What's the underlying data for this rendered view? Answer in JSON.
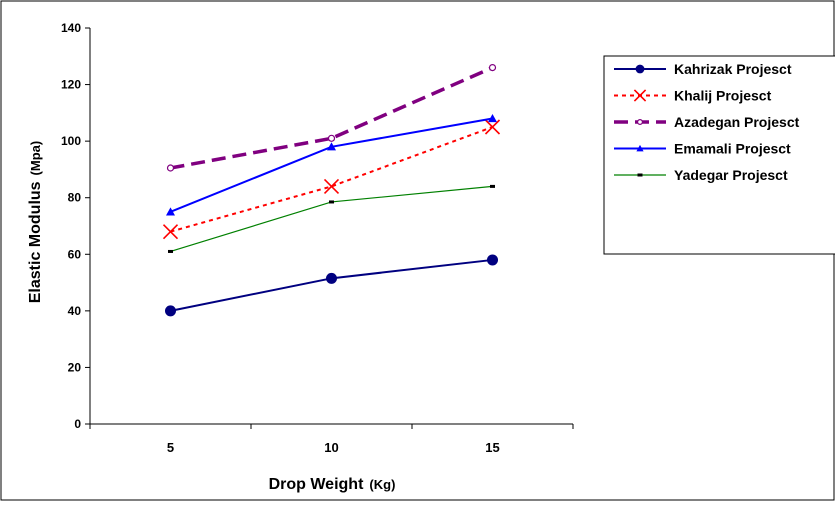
{
  "chart_data": {
    "type": "line",
    "xlabel": "Drop Weight",
    "xlabel_unit": "(Kg)",
    "ylabel": "Elastic Modulus",
    "ylabel_unit": "(Mpa)",
    "categories": [
      "5",
      "10",
      "15"
    ],
    "ylim": [
      0,
      140
    ],
    "yticks": [
      "0",
      "20",
      "40",
      "60",
      "80",
      "100",
      "120",
      "140"
    ],
    "grid": false,
    "legend_position": "right",
    "series": [
      {
        "name": "Kahrizak Projesct",
        "values": [
          40,
          51.5,
          58
        ],
        "color": "#000080",
        "marker": "circle",
        "dash": "solid"
      },
      {
        "name": "Khalij Projesct",
        "values": [
          68,
          84,
          105
        ],
        "color": "#ff0000",
        "marker": "x",
        "dash": "dotted"
      },
      {
        "name": "Azadegan Projesct",
        "values": [
          90.5,
          101,
          126
        ],
        "color": "#800080",
        "marker": "open-circle",
        "dash": "dashed"
      },
      {
        "name": "Emamali Projesct",
        "values": [
          75,
          98,
          108
        ],
        "color": "#0000ff",
        "marker": "triangle",
        "dash": "solid"
      },
      {
        "name": "Yadegar Projesct",
        "values": [
          61,
          78.5,
          84
        ],
        "color": "#008000",
        "marker": "dash",
        "dash": "solid"
      }
    ]
  }
}
